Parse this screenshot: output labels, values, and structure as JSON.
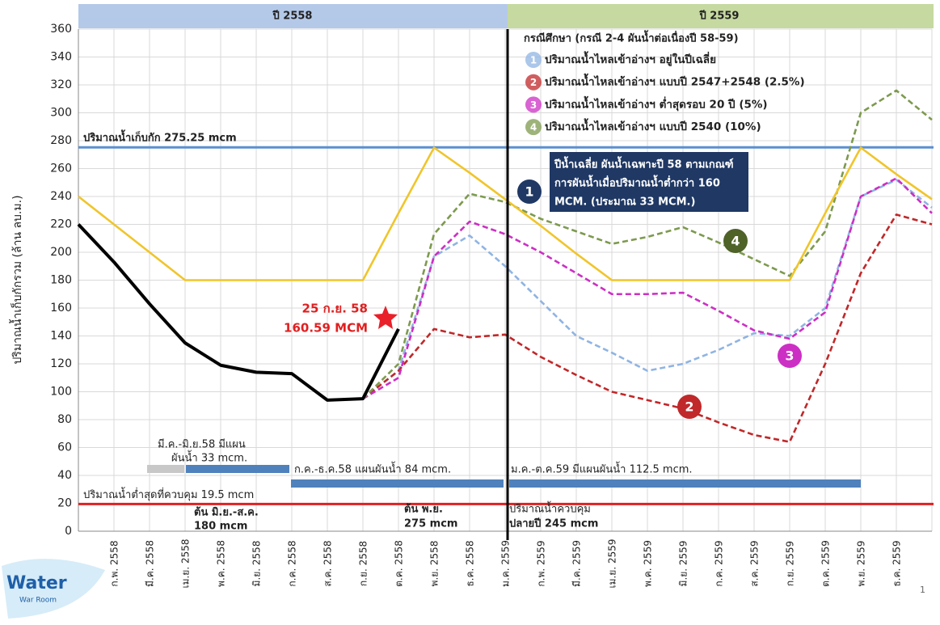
{
  "chart_data": {
    "type": "line",
    "y_label": "ปริมาณน้ำเก็บกักรวม (ล้าน ลบ.ม.)",
    "bands": [
      "ปี 2558",
      "ปี 2559"
    ],
    "legend_title": "กรณีศึกษา (กรณี 2-4 ผันน้ำต่อเนื่องปี 58-59)",
    "categories": [
      null,
      "ก.พ. 2558",
      "มี.ค. 2558",
      "เม.ย. 2558",
      "พ.ค. 2558",
      "มิ.ย. 2558",
      "ก.ค. 2558",
      "ส.ค. 2558",
      "ก.ย. 2558",
      "ต.ค. 2558",
      "พ.ย. 2558",
      "ธ.ค. 2558",
      "ม.ค. 2559",
      "ก.พ. 2559",
      "มี.ค. 2559",
      "เม.ย. 2559",
      "พ.ค. 2559",
      "มิ.ย. 2559",
      "ก.ค. 2559",
      "ส.ค. 2559",
      "ก.ย. 2559",
      "ต.ค. 2559",
      "พ.ย. 2559",
      "ธ.ค. 2559",
      null
    ],
    "series": [
      {
        "name": "ปริมาณน้ำไหลเข้าอ่างฯ อยู่ในปีเฉลี่ย",
        "marker": "1",
        "color": "#8fb4e3",
        "dash": true,
        "values": [
          null,
          null,
          null,
          null,
          null,
          null,
          null,
          null,
          95,
          115,
          197,
          212,
          190,
          165,
          140,
          128,
          115,
          120,
          130,
          142,
          140,
          160,
          240,
          252,
          232
        ]
      },
      {
        "name": "ปริมาณน้ำไหลเข้าอ่างฯ แบบปี 2547+2548 (2.5%)",
        "marker": "2",
        "color": "#c0282a",
        "dash": true,
        "values": [
          null,
          null,
          null,
          null,
          null,
          null,
          null,
          null,
          95,
          115,
          145,
          139,
          141,
          125,
          112,
          100,
          94,
          88,
          78,
          69,
          64,
          120,
          185,
          227,
          220
        ]
      },
      {
        "name": "ปริมาณน้ำไหลเข้าอ่างฯ ต่ำสุดรอบ 20 ปี (5%)",
        "marker": "3",
        "color": "#cc2fc4",
        "dash": true,
        "values": [
          null,
          null,
          null,
          null,
          null,
          null,
          null,
          null,
          95,
          110,
          197,
          222,
          213,
          200,
          185,
          170,
          170,
          171,
          158,
          144,
          138,
          157,
          240,
          253,
          228
        ]
      },
      {
        "name": "ปริมาณน้ำไหลเข้าอ่างฯ แบบปี 2540 (10%)",
        "marker": "4",
        "color": "#7d9a4e",
        "dash": true,
        "values": [
          null,
          null,
          null,
          null,
          null,
          null,
          null,
          null,
          95,
          120,
          213,
          242,
          236,
          224,
          215,
          206,
          211,
          218,
          207,
          195,
          183,
          215,
          300,
          316,
          295
        ]
      },
      {
        "color": "#f0c52a",
        "dash": false,
        "values": [
          240,
          220,
          200,
          180,
          180,
          180,
          180,
          180,
          180,
          228,
          275,
          257,
          238,
          219,
          199,
          180,
          180,
          180,
          180,
          180,
          180,
          228,
          275,
          256,
          238
        ]
      },
      {
        "color": "#000000",
        "dash": false,
        "width": 4,
        "values": [
          220,
          193,
          163,
          135,
          119,
          114,
          113,
          94,
          95,
          145,
          null,
          null,
          null,
          null,
          null,
          null,
          null,
          null,
          null,
          null,
          null,
          null,
          null,
          null,
          null
        ]
      }
    ],
    "hlines": [
      {
        "value": 275.25,
        "color": "#5b8fd0",
        "label": "ปริมาณน้ำเก็บกัก 275.25 mcm"
      },
      {
        "value": 19.5,
        "color": "#e02020",
        "label": "ปริมาณน้ำต่ำสุดที่ควบคุม 19.5 mcm"
      }
    ],
    "note_box": [
      "ปีน้ำเฉลี่ย ผันน้ำเฉพาะปี 58 ตามเกณฑ์",
      "การผันน้ำเมื่อปริมาณน้ำต่ำกว่า 160",
      "MCM. (ประมาณ 33 MCM.)"
    ],
    "note_marker": "1",
    "star_label": [
      "25 ก.ย. 58",
      "160.59 MCM"
    ],
    "annotations": [
      "มี.ค.-มิ.ย.58 มีแผน",
      "ผันน้ำ 33 mcm.",
      "ก.ค.-ธ.ค.58 แผนผันน้ำ 84 mcm.",
      "ม.ค.-ต.ค.59 มีแผนผันน้ำ 112.5 mcm.",
      "ต้น มิ.ย.-ส.ค.",
      "180 mcm",
      "ต้น พ.ย.",
      "275 mcm",
      "ปริมาณน้ำควบคุม",
      "ปลายปี 245 mcm"
    ],
    "logo": [
      "Water",
      "War Room"
    ],
    "page_number": "1",
    "ylim": [
      0,
      360
    ],
    "yticks": [
      0,
      20,
      40,
      60,
      80,
      100,
      120,
      140,
      160,
      180,
      200,
      220,
      240,
      260,
      280,
      300,
      320,
      340,
      360
    ],
    "grid": true
  }
}
